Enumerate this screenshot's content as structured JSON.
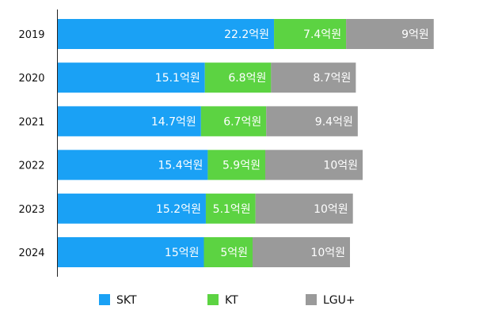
{
  "chart_data": {
    "type": "bar",
    "orientation": "horizontal",
    "stacked": true,
    "categories": [
      "2019",
      "2020",
      "2021",
      "2022",
      "2023",
      "2024"
    ],
    "series": [
      {
        "name": "SKT",
        "color": "#1aa1f5",
        "values": [
          22.2,
          15.1,
          14.7,
          15.4,
          15.2,
          15
        ],
        "labels": [
          "22.2억원",
          "15.1억원",
          "14.7억원",
          "15.4억원",
          "15.2억원",
          "15억원"
        ]
      },
      {
        "name": "KT",
        "color": "#5cd342",
        "values": [
          7.4,
          6.8,
          6.7,
          5.9,
          5.1,
          5
        ],
        "labels": [
          "7.4억원",
          "6.8억원",
          "6.7억원",
          "5.9억원",
          "5.1억원",
          "5억원"
        ]
      },
      {
        "name": "LGU+",
        "color": "#9a9a9a",
        "values": [
          9,
          8.7,
          9.4,
          10,
          10,
          10
        ],
        "labels": [
          "9억원",
          "8.7억원",
          "9.4억원",
          "10억원",
          "10억원",
          "10억원"
        ]
      }
    ],
    "legend_position": "bottom",
    "grid": false
  }
}
